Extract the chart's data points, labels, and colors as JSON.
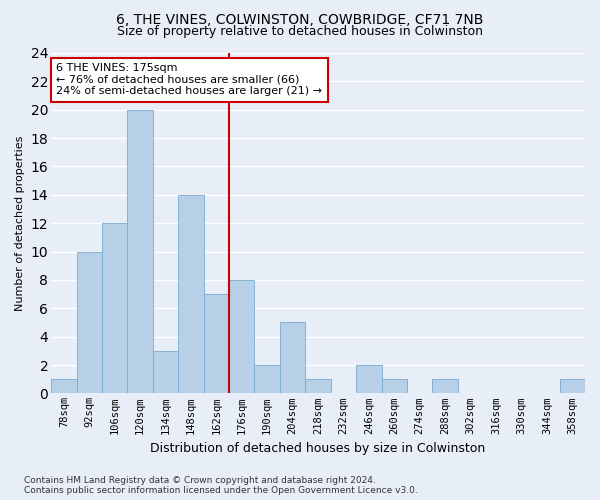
{
  "title": "6, THE VINES, COLWINSTON, COWBRIDGE, CF71 7NB",
  "subtitle": "Size of property relative to detached houses in Colwinston",
  "xlabel": "Distribution of detached houses by size in Colwinston",
  "ylabel": "Number of detached properties",
  "bar_labels": [
    "78sqm",
    "92sqm",
    "106sqm",
    "120sqm",
    "134sqm",
    "148sqm",
    "162sqm",
    "176sqm",
    "190sqm",
    "204sqm",
    "218sqm",
    "232sqm",
    "246sqm",
    "260sqm",
    "274sqm",
    "288sqm",
    "302sqm",
    "316sqm",
    "330sqm",
    "344sqm",
    "358sqm"
  ],
  "bar_heights": [
    1,
    10,
    12,
    20,
    3,
    14,
    7,
    8,
    2,
    5,
    1,
    0,
    2,
    1,
    0,
    1,
    0,
    0,
    0,
    0,
    1
  ],
  "bar_color": "#b8cfe8",
  "bar_edge_color": "#7aaad0",
  "vline_x_index": 7,
  "vline_color": "#cc0000",
  "annotation_text": "6 THE VINES: 175sqm\n← 76% of detached houses are smaller (66)\n24% of semi-detached houses are larger (21) →",
  "annotation_box_color": "#ffffff",
  "annotation_box_edge": "#cc0000",
  "ylim": [
    0,
    24
  ],
  "yticks": [
    0,
    2,
    4,
    6,
    8,
    10,
    12,
    14,
    16,
    18,
    20,
    22,
    24
  ],
  "footnote": "Contains HM Land Registry data © Crown copyright and database right 2024.\nContains public sector information licensed under the Open Government Licence v3.0.",
  "bg_color": "#e8eef8",
  "plot_bg_color": "#e8eef8",
  "grid_color": "#ffffff",
  "title_fontsize": 10,
  "subtitle_fontsize": 9,
  "ylabel_fontsize": 8,
  "xlabel_fontsize": 9,
  "tick_fontsize": 7.5,
  "footnote_fontsize": 6.5,
  "ann_fontsize": 8
}
